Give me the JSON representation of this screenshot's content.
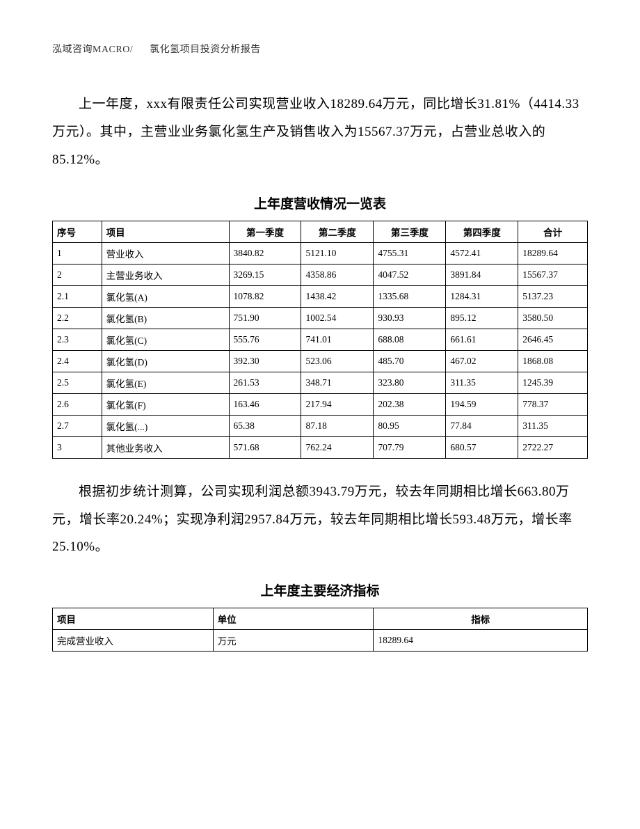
{
  "header": {
    "left": "泓域咨询MACRO/",
    "right": "氯化氢项目投资分析报告"
  },
  "paragraph1": "上一年度，xxx有限责任公司实现营业收入18289.64万元，同比增长31.81%（4414.33万元）。其中，主营业业务氯化氢生产及销售收入为15567.37万元，占营业总收入的85.12%。",
  "table1": {
    "title": "上年度营收情况一览表",
    "headers": {
      "seq": "序号",
      "item": "项目",
      "q1": "第一季度",
      "q2": "第二季度",
      "q3": "第三季度",
      "q4": "第四季度",
      "total": "合计"
    },
    "rows": [
      {
        "seq": "1",
        "item": "营业收入",
        "q1": "3840.82",
        "q2": "5121.10",
        "q3": "4755.31",
        "q4": "4572.41",
        "total": "18289.64"
      },
      {
        "seq": "2",
        "item": "主营业务收入",
        "q1": "3269.15",
        "q2": "4358.86",
        "q3": "4047.52",
        "q4": "3891.84",
        "total": "15567.37"
      },
      {
        "seq": "2.1",
        "item": "氯化氢(A)",
        "q1": "1078.82",
        "q2": "1438.42",
        "q3": "1335.68",
        "q4": "1284.31",
        "total": "5137.23"
      },
      {
        "seq": "2.2",
        "item": "氯化氢(B)",
        "q1": "751.90",
        "q2": "1002.54",
        "q3": "930.93",
        "q4": "895.12",
        "total": "3580.50"
      },
      {
        "seq": "2.3",
        "item": "氯化氢(C)",
        "q1": "555.76",
        "q2": "741.01",
        "q3": "688.08",
        "q4": "661.61",
        "total": "2646.45"
      },
      {
        "seq": "2.4",
        "item": "氯化氢(D)",
        "q1": "392.30",
        "q2": "523.06",
        "q3": "485.70",
        "q4": "467.02",
        "total": "1868.08"
      },
      {
        "seq": "2.5",
        "item": "氯化氢(E)",
        "q1": "261.53",
        "q2": "348.71",
        "q3": "323.80",
        "q4": "311.35",
        "total": "1245.39"
      },
      {
        "seq": "2.6",
        "item": "氯化氢(F)",
        "q1": "163.46",
        "q2": "217.94",
        "q3": "202.38",
        "q4": "194.59",
        "total": "778.37"
      },
      {
        "seq": "2.7",
        "item": "氯化氢(...)",
        "q1": "65.38",
        "q2": "87.18",
        "q3": "80.95",
        "q4": "77.84",
        "total": "311.35"
      },
      {
        "seq": "3",
        "item": "其他业务收入",
        "q1": "571.68",
        "q2": "762.24",
        "q3": "707.79",
        "q4": "680.57",
        "total": "2722.27"
      }
    ]
  },
  "paragraph2": "根据初步统计测算，公司实现利润总额3943.79万元，较去年同期相比增长663.80万元，增长率20.24%；实现净利润2957.84万元，较去年同期相比增长593.48万元，增长率25.10%。",
  "table2": {
    "title": "上年度主要经济指标",
    "headers": {
      "item": "项目",
      "unit": "单位",
      "value": "指标"
    },
    "rows": [
      {
        "item": "完成营业收入",
        "unit": "万元",
        "value": "18289.64"
      }
    ]
  }
}
